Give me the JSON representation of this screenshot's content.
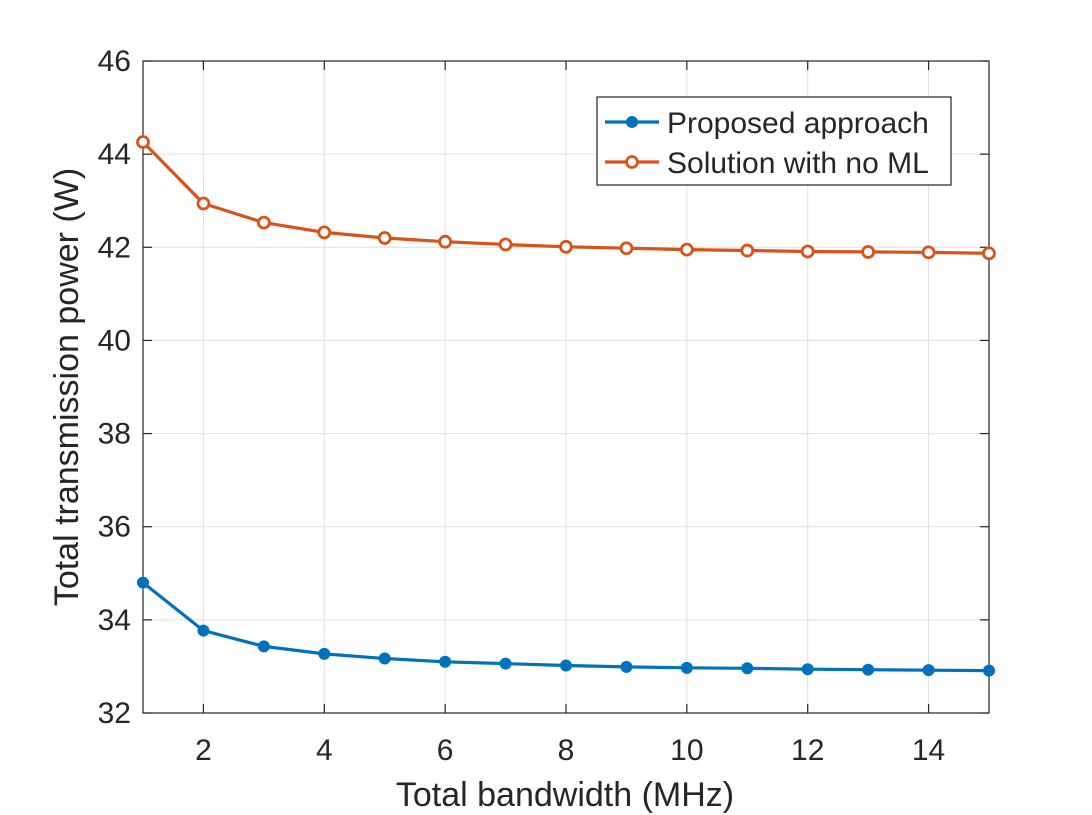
{
  "chart_data": {
    "type": "line",
    "title": "",
    "xlabel": "Total bandwidth (MHz)",
    "ylabel": "Total transmission power (W)",
    "xlim": [
      1,
      15
    ],
    "ylim": [
      32,
      46
    ],
    "xticks": [
      2,
      4,
      6,
      8,
      10,
      12,
      14
    ],
    "yticks": [
      32,
      34,
      36,
      38,
      40,
      42,
      44,
      46
    ],
    "grid": true,
    "legend_position": "top-right",
    "x": [
      1,
      2,
      3,
      4,
      5,
      6,
      7,
      8,
      9,
      10,
      11,
      12,
      13,
      14,
      15
    ],
    "series": [
      {
        "name": "Proposed approach",
        "color": "#0072BD",
        "marker": "filled-circle",
        "values": [
          34.8,
          33.77,
          33.43,
          33.27,
          33.17,
          33.1,
          33.06,
          33.02,
          32.99,
          32.97,
          32.96,
          32.94,
          32.93,
          32.92,
          32.91
        ]
      },
      {
        "name": "Solution with no ML",
        "color": "#D95319",
        "marker": "open-circle",
        "values": [
          44.26,
          42.94,
          42.53,
          42.32,
          42.2,
          42.12,
          42.06,
          42.01,
          41.98,
          41.95,
          41.93,
          41.91,
          41.9,
          41.89,
          41.87
        ]
      }
    ]
  }
}
